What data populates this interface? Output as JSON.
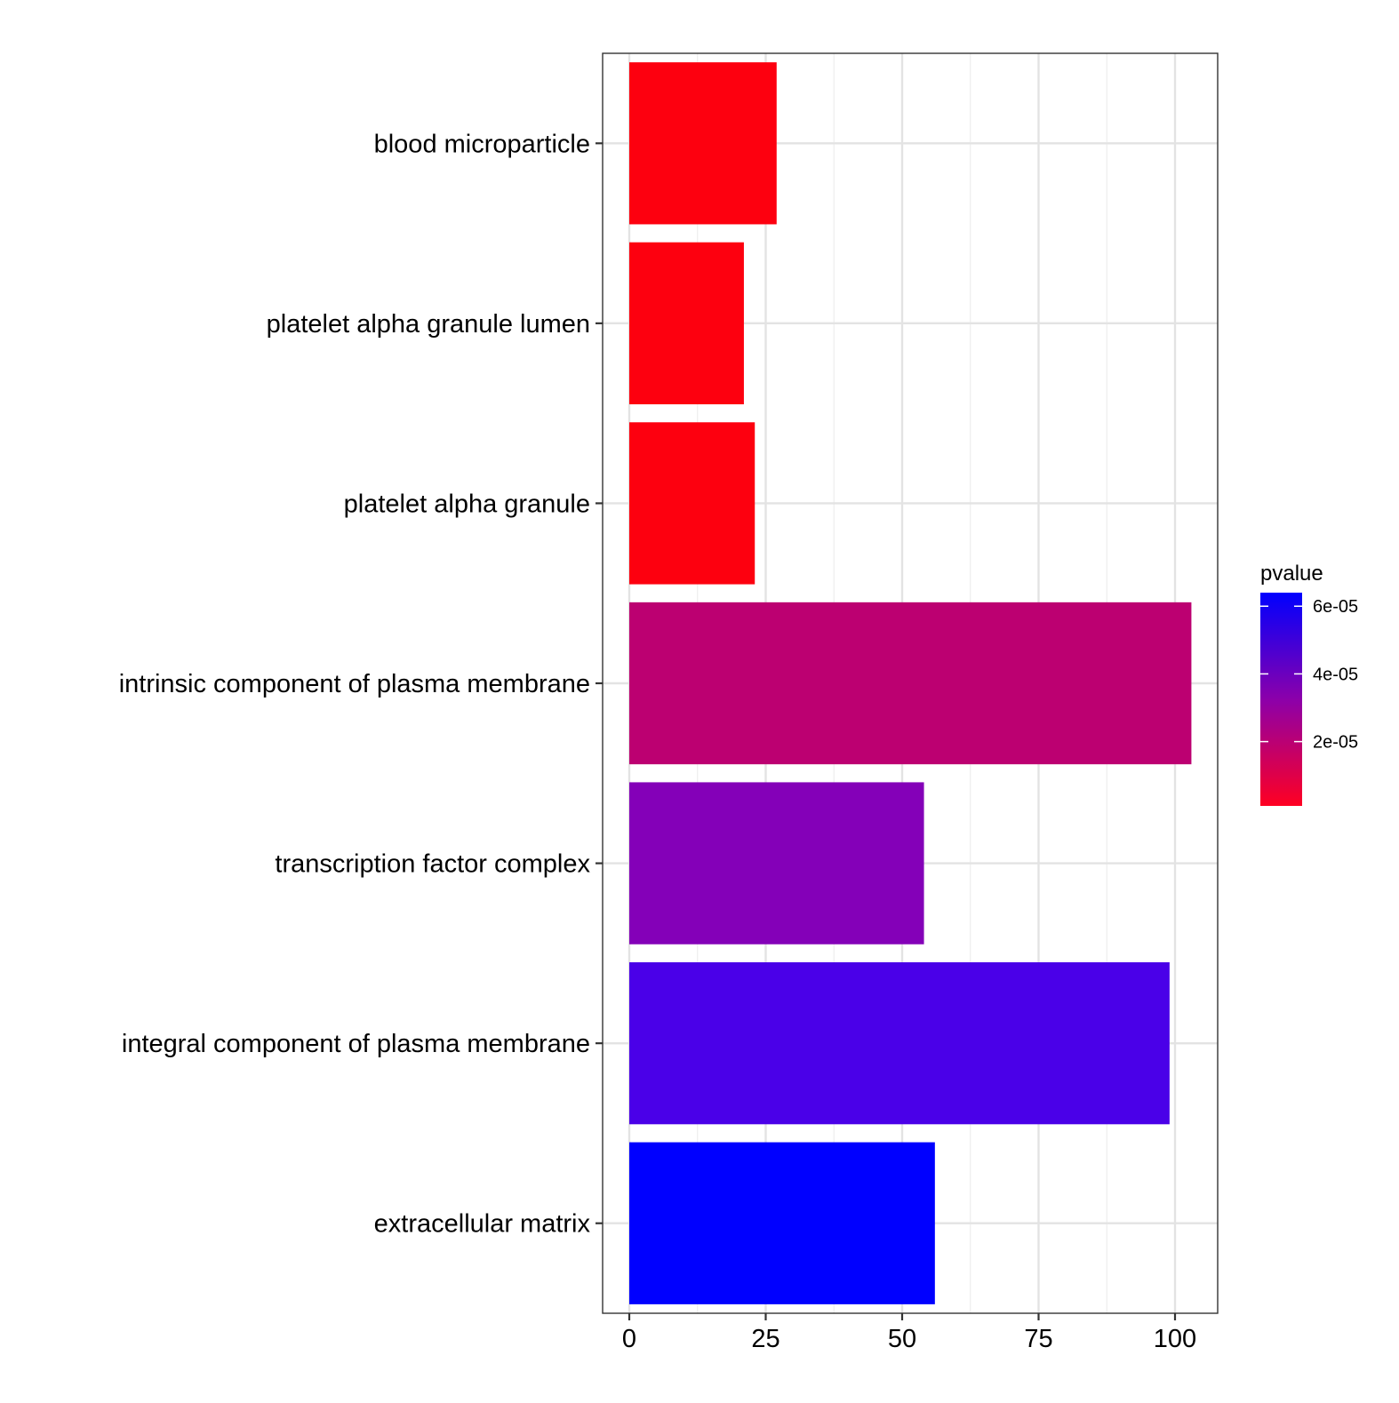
{
  "chart_data": {
    "type": "bar",
    "orientation": "horizontal",
    "title": "",
    "xlabel": "",
    "ylabel": "",
    "categories": [
      "blood microparticle",
      "platelet alpha granule lumen",
      "platelet alpha granule",
      "intrinsic component of plasma membrane",
      "transcription factor complex",
      "integral component of plasma membrane",
      "extracellular matrix"
    ],
    "values": [
      27,
      21,
      23,
      103,
      54,
      99,
      56
    ],
    "pvalues": [
      1e-06,
      2e-06,
      1.5e-06,
      2.5e-05,
      4.5e-05,
      5.5e-05,
      6.3e-05
    ],
    "bar_colors": [
      "#FD000F",
      "#FD000F",
      "#FD000F",
      "#BC0071",
      "#8400B8",
      "#4A00E8",
      "#0000FF"
    ],
    "xlim": [
      -5,
      108
    ],
    "xticks": [
      0,
      25,
      50,
      75,
      100
    ],
    "xtick_labels": [
      "0",
      "25",
      "50",
      "75",
      "100"
    ],
    "grid": true,
    "legend": {
      "title": "pvalue",
      "position": "right",
      "type": "colorbar",
      "range": [
        1e-06,
        6.4e-05
      ],
      "low_color": "#FF0022",
      "high_color": "#0000FF",
      "ticks": [
        2e-05,
        4e-05,
        6e-05
      ],
      "tick_labels": [
        "2e-05",
        "4e-05",
        "6e-05"
      ]
    }
  }
}
